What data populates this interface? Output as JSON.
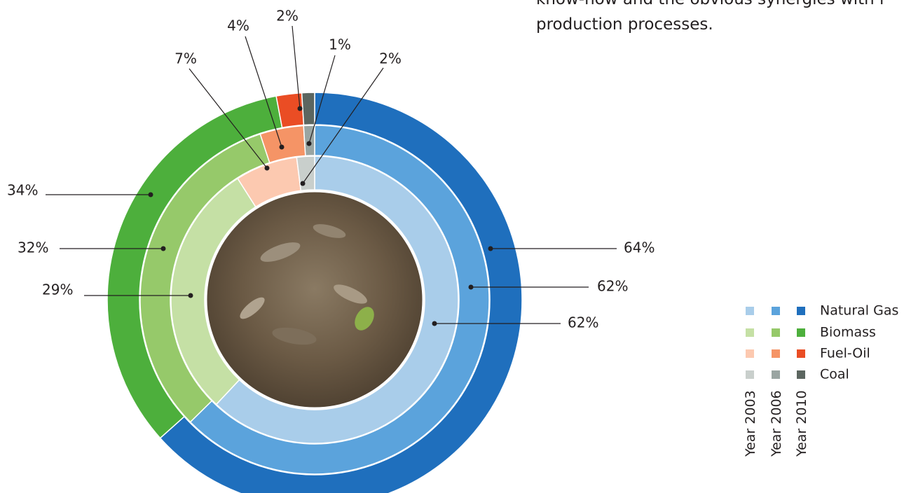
{
  "chart_data": {
    "type": "nested-donut",
    "annotations": [
      "know-how and the obvious synergies with i",
      "production processes."
    ],
    "categories": [
      "Natural Gas",
      "Biomass",
      "Fuel-Oil",
      "Coal"
    ],
    "series": [
      {
        "name": "Year 2003",
        "values": [
          62,
          29,
          7,
          2
        ],
        "value_labels": [
          "62%",
          "29%",
          "7%",
          "2%"
        ],
        "colors": [
          "#a9cdea",
          "#c5e0a5",
          "#fcc9b0",
          "#c9cfcc"
        ]
      },
      {
        "name": "Year 2006",
        "values": [
          62,
          32,
          4,
          1
        ],
        "value_labels": [
          "62%",
          "32%",
          "4%",
          "1%"
        ],
        "colors": [
          "#5ba3dc",
          "#96c96a",
          "#f59466",
          "#9aa5a2"
        ]
      },
      {
        "name": "Year 2010",
        "values": [
          64,
          34,
          2,
          1
        ],
        "value_labels": [
          "64%",
          "34%",
          "2%",
          null
        ],
        "colors": [
          "#1f6fbd",
          "#4daf3c",
          "#ea4d24",
          "#5c6660"
        ]
      }
    ]
  }
}
